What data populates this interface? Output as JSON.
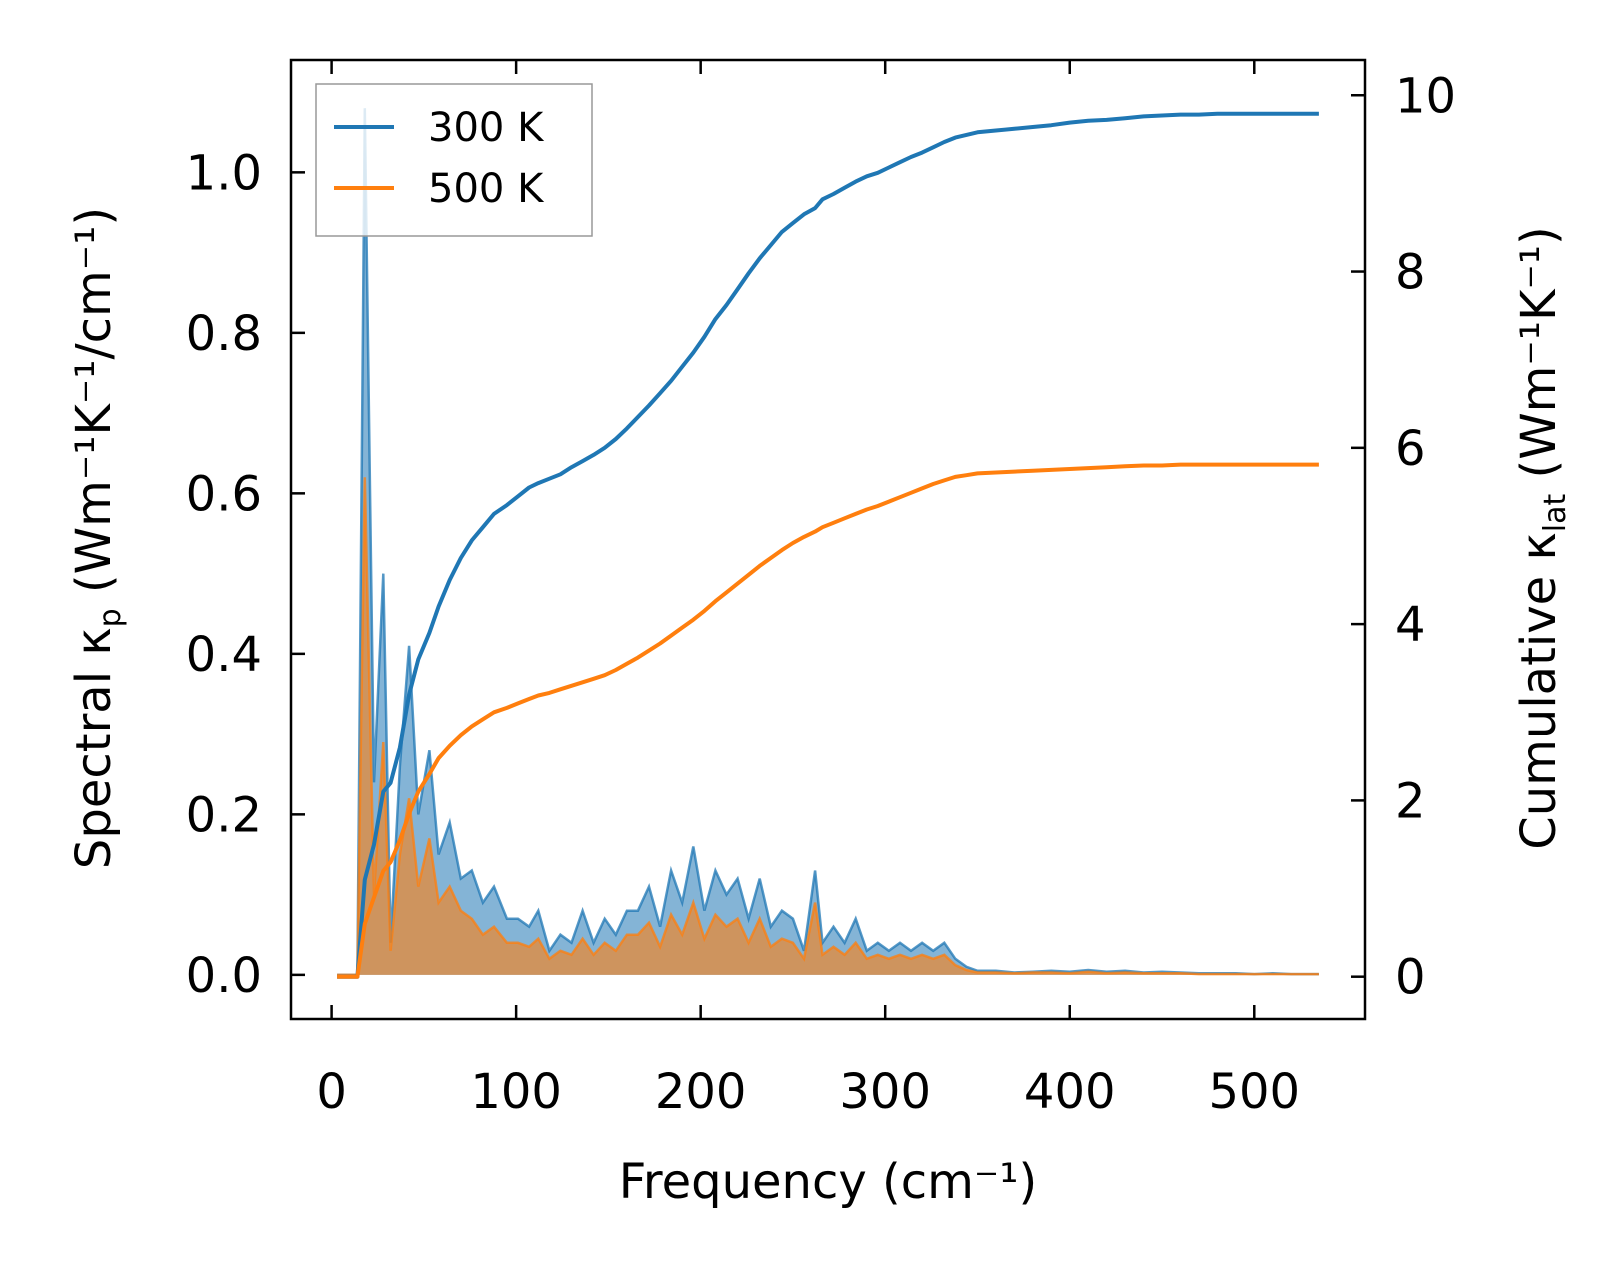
{
  "chart_data": {
    "type": "line",
    "title": "",
    "xlabel": "Frequency (cm⁻¹)",
    "ylabel_left": {
      "prefix": "Spectral κ",
      "sub": "p",
      "suffix": " (Wm⁻¹K⁻¹/cm⁻¹)"
    },
    "ylabel_right": {
      "prefix": "Cumulative κ",
      "sub": "lat",
      "suffix": " (Wm⁻¹K⁻¹)"
    },
    "xlim": [
      -22,
      560
    ],
    "ylim_left": [
      -0.055,
      1.14
    ],
    "ylim_right": [
      -0.48,
      10.4
    ],
    "x_ticks": [
      0,
      100,
      200,
      300,
      400,
      500
    ],
    "y_ticks_left": [
      0.0,
      0.2,
      0.4,
      0.6,
      0.8,
      1.0
    ],
    "y_ticks_left_labels": [
      "0.0",
      "0.2",
      "0.4",
      "0.6",
      "0.8",
      "1.0"
    ],
    "y_ticks_right": [
      0,
      2,
      4,
      6,
      8,
      10
    ],
    "legend_position": "top-left",
    "x": [
      3,
      8,
      14,
      18,
      23,
      28,
      32,
      37,
      42,
      47,
      53,
      58,
      64,
      70,
      76,
      82,
      88,
      95,
      101,
      107,
      112,
      118,
      124,
      130,
      136,
      142,
      148,
      154,
      160,
      166,
      172,
      178,
      184,
      190,
      196,
      202,
      208,
      214,
      220,
      226,
      232,
      238,
      244,
      250,
      256,
      262,
      266,
      272,
      278,
      284,
      290,
      296,
      302,
      308,
      314,
      320,
      326,
      332,
      338,
      344,
      350,
      360,
      370,
      380,
      390,
      400,
      410,
      420,
      430,
      440,
      450,
      460,
      470,
      480,
      490,
      500,
      510,
      520,
      535
    ],
    "series": [
      {
        "name": "300 K",
        "color": "#1f77b4",
        "spectral": [
          0.0,
          0.0,
          0.0,
          1.08,
          0.24,
          0.5,
          0.04,
          0.26,
          0.41,
          0.2,
          0.28,
          0.15,
          0.19,
          0.12,
          0.13,
          0.09,
          0.11,
          0.07,
          0.07,
          0.06,
          0.08,
          0.03,
          0.05,
          0.04,
          0.08,
          0.04,
          0.07,
          0.05,
          0.08,
          0.08,
          0.11,
          0.06,
          0.13,
          0.09,
          0.16,
          0.08,
          0.13,
          0.1,
          0.12,
          0.07,
          0.12,
          0.06,
          0.08,
          0.07,
          0.03,
          0.13,
          0.04,
          0.06,
          0.04,
          0.07,
          0.03,
          0.04,
          0.03,
          0.04,
          0.03,
          0.04,
          0.03,
          0.04,
          0.02,
          0.01,
          0.005,
          0.005,
          0.003,
          0.004,
          0.005,
          0.004,
          0.006,
          0.004,
          0.005,
          0.003,
          0.004,
          0.003,
          0.002,
          0.002,
          0.002,
          0.001,
          0.002,
          0.001,
          0.001
        ],
        "cumulative": [
          0.0,
          0.0,
          0.0,
          1.1,
          1.5,
          2.1,
          2.2,
          2.6,
          3.2,
          3.6,
          3.9,
          4.2,
          4.5,
          4.75,
          4.95,
          5.1,
          5.25,
          5.35,
          5.45,
          5.55,
          5.6,
          5.65,
          5.7,
          5.78,
          5.85,
          5.92,
          6.0,
          6.1,
          6.22,
          6.35,
          6.48,
          6.62,
          6.76,
          6.92,
          7.08,
          7.26,
          7.46,
          7.62,
          7.8,
          7.98,
          8.15,
          8.3,
          8.45,
          8.55,
          8.65,
          8.72,
          8.82,
          8.88,
          8.95,
          9.02,
          9.08,
          9.12,
          9.18,
          9.24,
          9.3,
          9.35,
          9.41,
          9.47,
          9.52,
          9.55,
          9.58,
          9.6,
          9.62,
          9.64,
          9.66,
          9.69,
          9.71,
          9.72,
          9.74,
          9.76,
          9.77,
          9.78,
          9.78,
          9.79,
          9.79,
          9.79,
          9.79,
          9.79,
          9.79
        ]
      },
      {
        "name": "500 K",
        "color": "#ff7f0e",
        "spectral": [
          0.0,
          0.0,
          0.0,
          0.62,
          0.1,
          0.29,
          0.03,
          0.15,
          0.22,
          0.11,
          0.17,
          0.09,
          0.11,
          0.08,
          0.07,
          0.05,
          0.06,
          0.04,
          0.04,
          0.035,
          0.045,
          0.02,
          0.03,
          0.025,
          0.045,
          0.025,
          0.04,
          0.03,
          0.05,
          0.05,
          0.065,
          0.035,
          0.075,
          0.05,
          0.09,
          0.045,
          0.075,
          0.06,
          0.07,
          0.04,
          0.07,
          0.035,
          0.045,
          0.04,
          0.02,
          0.09,
          0.025,
          0.035,
          0.025,
          0.04,
          0.02,
          0.025,
          0.02,
          0.025,
          0.02,
          0.025,
          0.02,
          0.025,
          0.012,
          0.006,
          0.003,
          0.003,
          0.002,
          0.003,
          0.003,
          0.002,
          0.004,
          0.002,
          0.003,
          0.002,
          0.002,
          0.002,
          0.001,
          0.001,
          0.001,
          0.001,
          0.001,
          0.001,
          0.001
        ],
        "cumulative": [
          0.0,
          0.0,
          0.0,
          0.6,
          0.9,
          1.2,
          1.3,
          1.55,
          1.85,
          2.1,
          2.3,
          2.48,
          2.62,
          2.74,
          2.84,
          2.92,
          3.0,
          3.05,
          3.1,
          3.15,
          3.19,
          3.22,
          3.26,
          3.3,
          3.34,
          3.38,
          3.42,
          3.48,
          3.55,
          3.62,
          3.7,
          3.78,
          3.87,
          3.96,
          4.05,
          4.15,
          4.26,
          4.36,
          4.46,
          4.56,
          4.66,
          4.75,
          4.84,
          4.92,
          4.99,
          5.05,
          5.1,
          5.15,
          5.2,
          5.25,
          5.3,
          5.34,
          5.39,
          5.44,
          5.49,
          5.54,
          5.59,
          5.63,
          5.67,
          5.69,
          5.71,
          5.72,
          5.73,
          5.74,
          5.75,
          5.76,
          5.77,
          5.78,
          5.79,
          5.8,
          5.8,
          5.81,
          5.81,
          5.81,
          5.81,
          5.81,
          5.81,
          5.81,
          5.81
        ]
      }
    ]
  }
}
